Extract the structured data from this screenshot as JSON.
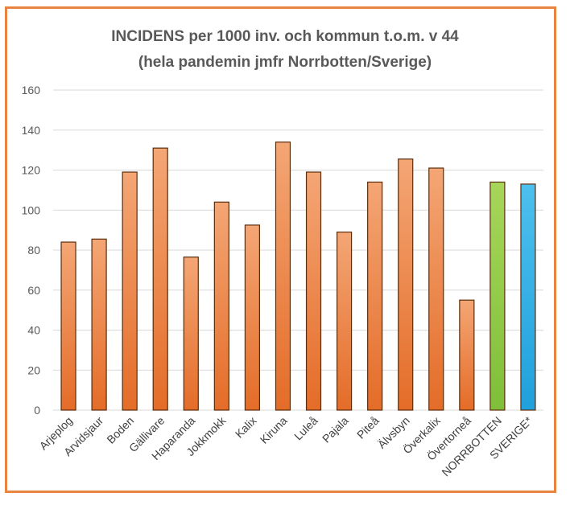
{
  "colors": {
    "frame": "#e8843f",
    "bar_orange_light": "#f4a675",
    "bar_orange_dark": "#e46c28",
    "bar_green": "#8dc63f",
    "bar_blue": "#29abe2",
    "bar_border": "#5a2d0c",
    "grid": "#d9d9d9",
    "text": "#595959"
  },
  "chart_data": {
    "type": "bar",
    "title": "INCIDENS per 1000 inv. och kommun t.o.m. v 44",
    "subtitle": "(hela pandemin jmfr Norrbotten/Sverige)",
    "xlabel": "",
    "ylabel": "",
    "ylim": [
      0,
      160
    ],
    "yticks": [
      0,
      20,
      40,
      60,
      80,
      100,
      120,
      140,
      160
    ],
    "grid": true,
    "legend": "none",
    "categories": [
      "Arjeplog",
      "Arvidsjaur",
      "Boden",
      "Gällivare",
      "Haparanda",
      "Jokkmokk",
      "Kalix",
      "Kiruna",
      "Luleå",
      "Pajala",
      "Piteå",
      "Älvsbyn",
      "Överkalix",
      "Övertorneå",
      "NORRBOTTEN",
      "SVERIGE*"
    ],
    "values": [
      84,
      85.5,
      119,
      131,
      76.5,
      104,
      92.5,
      134,
      119,
      89,
      114,
      125.5,
      121,
      55,
      114,
      113
    ],
    "bar_colors": [
      "orange",
      "orange",
      "orange",
      "orange",
      "orange",
      "orange",
      "orange",
      "orange",
      "orange",
      "orange",
      "orange",
      "orange",
      "orange",
      "orange",
      "green",
      "blue"
    ]
  }
}
